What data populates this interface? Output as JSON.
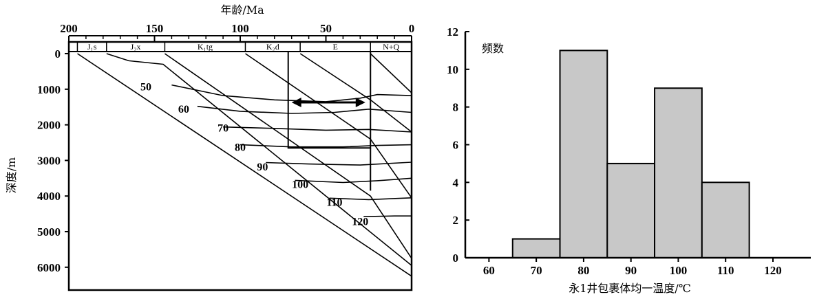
{
  "chart_data": [
    {
      "type": "line",
      "title": "",
      "xlabel": "年龄/Ma",
      "ylabel": "深度/m",
      "x_ticks": [
        "200",
        "150",
        "100",
        "50",
        "0"
      ],
      "y_ticks": [
        "0",
        "1000",
        "2000",
        "3000",
        "4000",
        "5000",
        "6000"
      ],
      "xlim": [
        200,
        0
      ],
      "ylim": [
        0,
        6600
      ],
      "strata": [
        {
          "name": "J₁s",
          "from": 195,
          "to": 178
        },
        {
          "name": "J₂x",
          "from": 178,
          "to": 144
        },
        {
          "name": "K₁tg",
          "from": 144,
          "to": 97
        },
        {
          "name": "K₂d",
          "from": 97,
          "to": 65
        },
        {
          "name": "E",
          "from": 65,
          "to": 24
        },
        {
          "name": "N+Q",
          "from": 24,
          "to": 0
        }
      ],
      "burial_curves": [
        {
          "points": [
            [
              195,
              0
            ],
            [
              0,
              6250
            ]
          ]
        },
        {
          "points": [
            [
              178,
              0
            ],
            [
              165,
              200
            ],
            [
              145,
              300
            ],
            [
              0,
              5950
            ]
          ]
        },
        {
          "points": [
            [
              144,
              0
            ],
            [
              24,
              4000
            ],
            [
              0,
              5750
            ]
          ]
        },
        {
          "points": [
            [
              97,
              0
            ],
            [
              24,
              2400
            ],
            [
              0,
              4050
            ]
          ]
        },
        {
          "points": [
            [
              65,
              0
            ],
            [
              24,
              1300
            ],
            [
              0,
              2200
            ]
          ]
        },
        {
          "points": [
            [
              24,
              0
            ],
            [
              0,
              1100
            ]
          ]
        }
      ],
      "isotherms": [
        {
          "label": "50",
          "label_at": [
            155,
            920
          ],
          "points": [
            [
              140,
              880
            ],
            [
              110,
              1180
            ],
            [
              80,
              1300
            ],
            [
              50,
              1350
            ],
            [
              30,
              1250
            ],
            [
              20,
              1150
            ],
            [
              0,
              1180
            ]
          ]
        },
        {
          "label": "60",
          "label_at": [
            133,
            1540
          ],
          "points": [
            [
              125,
              1480
            ],
            [
              100,
              1620
            ],
            [
              70,
              1680
            ],
            [
              45,
              1650
            ],
            [
              25,
              1560
            ],
            [
              0,
              1650
            ]
          ]
        },
        {
          "label": "70",
          "label_at": [
            110,
            2080
          ],
          "points": [
            [
              110,
              2060
            ],
            [
              80,
              2100
            ],
            [
              50,
              2150
            ],
            [
              25,
              2130
            ],
            [
              0,
              2200
            ]
          ]
        },
        {
          "label": "80",
          "label_at": [
            100,
            2620
          ],
          "points": [
            [
              100,
              2560
            ],
            [
              70,
              2620
            ],
            [
              40,
              2620
            ],
            [
              20,
              2580
            ],
            [
              0,
              2560
            ]
          ]
        },
        {
          "label": "90",
          "label_at": [
            87,
            3170
          ],
          "points": [
            [
              85,
              3060
            ],
            [
              60,
              3100
            ],
            [
              30,
              3130
            ],
            [
              0,
              3050
            ]
          ]
        },
        {
          "label": "100",
          "label_at": [
            65,
            3660
          ],
          "points": [
            [
              68,
              3560
            ],
            [
              40,
              3620
            ],
            [
              20,
              3570
            ],
            [
              0,
              3500
            ]
          ]
        },
        {
          "label": "110",
          "label_at": [
            45,
            4160
          ],
          "points": [
            [
              48,
              4060
            ],
            [
              25,
              4100
            ],
            [
              0,
              4050
            ]
          ]
        },
        {
          "label": "120",
          "label_at": [
            30,
            4700
          ],
          "points": [
            [
              28,
              4580
            ],
            [
              10,
              4560
            ],
            [
              0,
              4560
            ]
          ]
        }
      ],
      "highlight_box": {
        "x_range": [
          72,
          24
        ],
        "y_range": [
          0,
          2650
        ]
      },
      "arrow": {
        "x_range": [
          70,
          27
        ],
        "y": 1370
      }
    },
    {
      "type": "bar",
      "title": "",
      "xlabel": "永1井包裹体均一温度/℃",
      "ylabel": "频数",
      "x_ticks": [
        "60",
        "70",
        "80",
        "90",
        "100",
        "110",
        "120"
      ],
      "y_ticks": [
        "0",
        "2",
        "4",
        "6",
        "8",
        "10",
        "12"
      ],
      "xlim": [
        55,
        128
      ],
      "ylim": [
        0,
        12
      ],
      "bins": [
        [
          65,
          75
        ],
        [
          75,
          85
        ],
        [
          85,
          95
        ],
        [
          95,
          105
        ],
        [
          105,
          115
        ]
      ],
      "values": [
        1,
        11,
        5,
        9,
        4
      ],
      "bar_color": "#c8c8c8"
    }
  ]
}
